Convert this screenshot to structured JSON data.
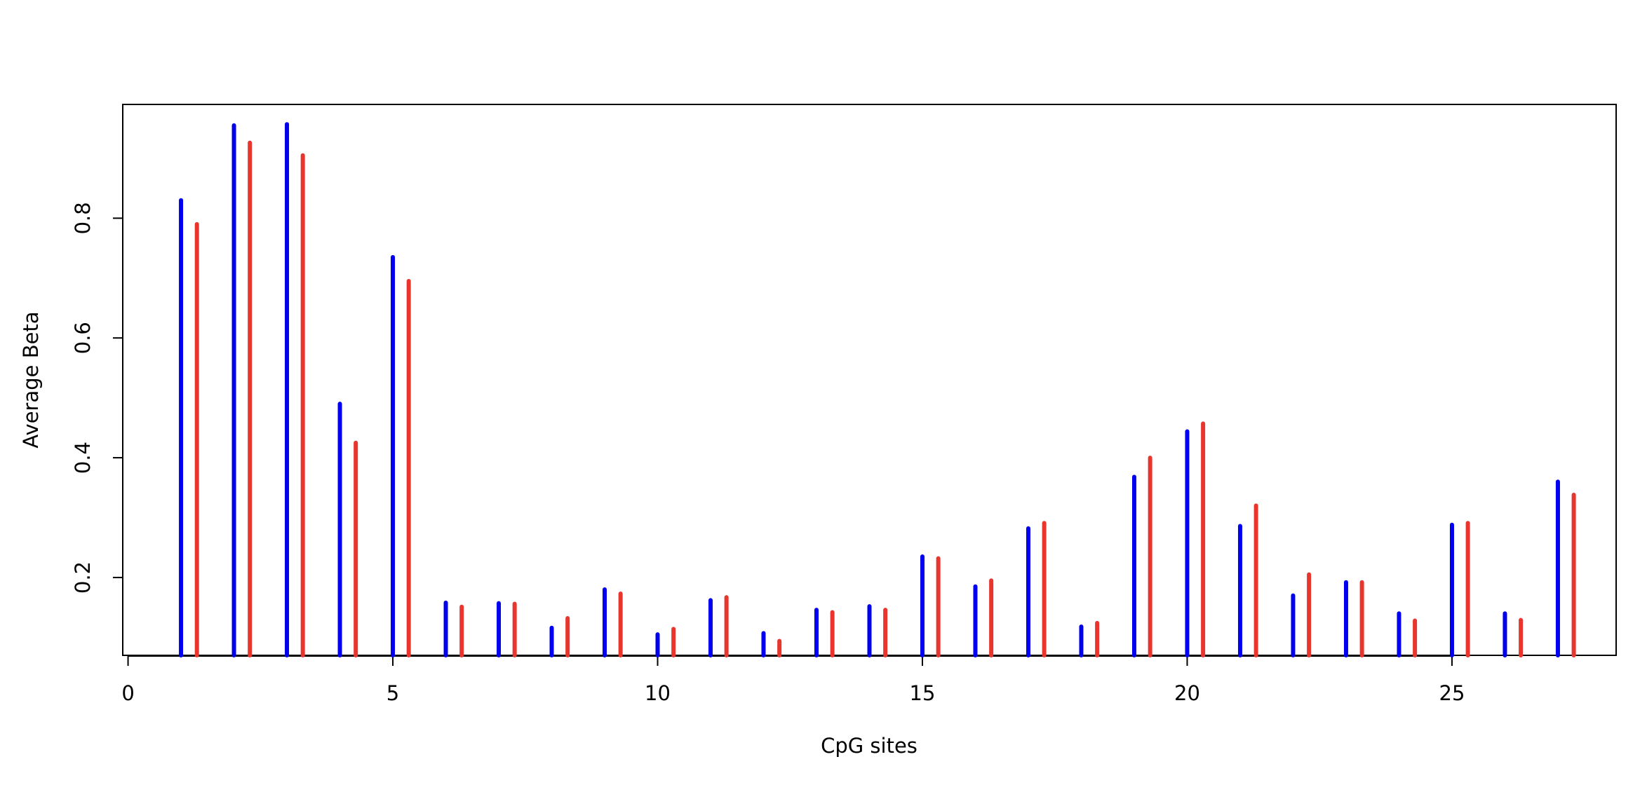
{
  "chart_data": {
    "type": "bar",
    "title": "",
    "xlabel": "CpG sites",
    "ylabel": "Average Beta",
    "xlim": [
      -0.1,
      28.1
    ],
    "ylim": [
      0.07,
      0.99
    ],
    "x_ticks": [
      0,
      5,
      10,
      15,
      20,
      25
    ],
    "y_ticks": [
      0.2,
      0.4,
      0.6,
      0.8
    ],
    "grid": false,
    "legend": "none",
    "series": [
      {
        "color": "#0000ee",
        "offset": 0,
        "x": [
          1,
          2,
          3,
          4,
          5,
          6,
          7,
          8,
          9,
          10,
          11,
          12,
          13,
          14,
          15,
          16,
          17,
          18,
          19,
          20,
          21,
          22,
          23,
          24,
          25,
          26,
          27
        ],
        "values": [
          0.83,
          0.955,
          0.957,
          0.49,
          0.735,
          0.158,
          0.157,
          0.116,
          0.18,
          0.105,
          0.162,
          0.107,
          0.146,
          0.152,
          0.235,
          0.185,
          0.282,
          0.118,
          0.368,
          0.444,
          0.286,
          0.17,
          0.192,
          0.14,
          0.288,
          0.14,
          0.36
        ]
      },
      {
        "color": "#e8352e",
        "offset": 0.3,
        "x": [
          1,
          2,
          3,
          4,
          5,
          6,
          7,
          8,
          9,
          10,
          11,
          12,
          13,
          14,
          15,
          16,
          17,
          18,
          19,
          20,
          21,
          22,
          23,
          24,
          25,
          26,
          27
        ],
        "values": [
          0.79,
          0.926,
          0.905,
          0.425,
          0.695,
          0.151,
          0.156,
          0.132,
          0.173,
          0.114,
          0.167,
          0.094,
          0.142,
          0.146,
          0.232,
          0.195,
          0.291,
          0.124,
          0.4,
          0.457,
          0.32,
          0.205,
          0.192,
          0.128,
          0.291,
          0.129,
          0.338
        ]
      }
    ]
  }
}
